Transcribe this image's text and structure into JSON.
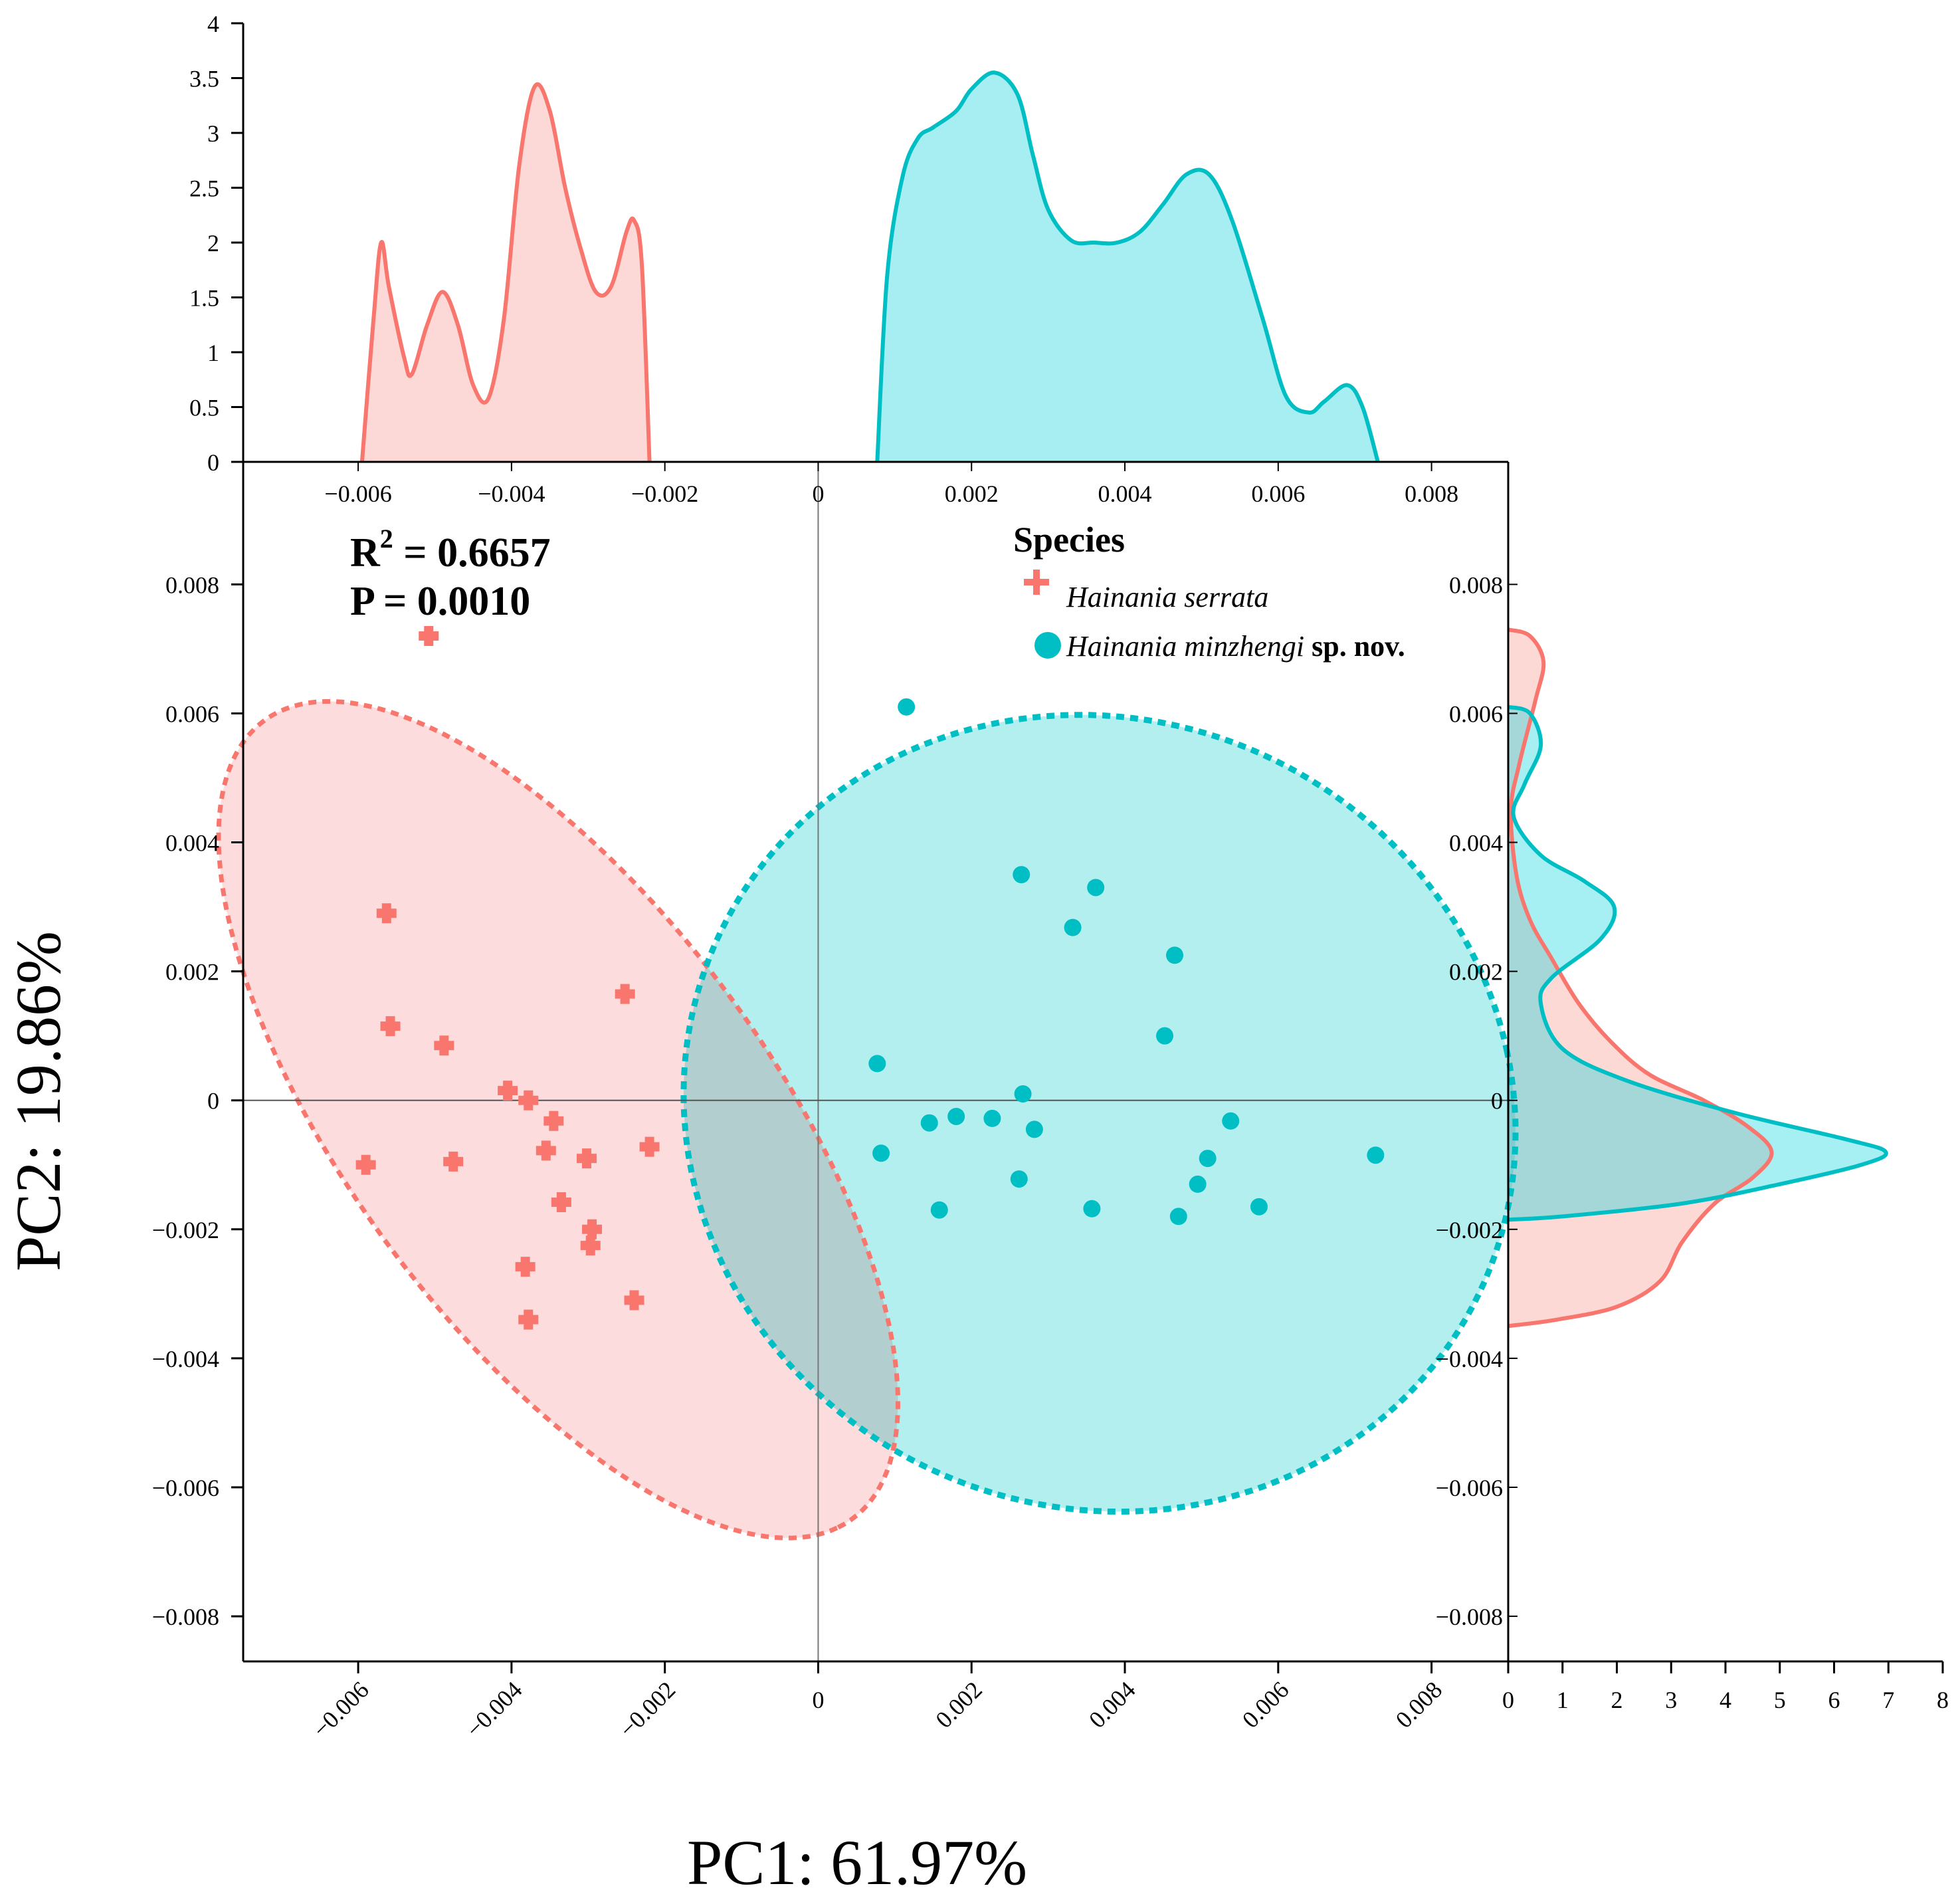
{
  "chart_data": {
    "type": "scatter",
    "title": "",
    "xlabel": "PC1: 61.97%",
    "ylabel": "PC2: 19.86%",
    "xlim": [
      -0.0075,
      0.009
    ],
    "ylim": [
      -0.0087,
      0.0099
    ],
    "x_ticks": [
      "−0.006",
      "−0.004",
      "−0.002",
      "0",
      "0.002",
      "0.004",
      "0.006",
      "0.008"
    ],
    "y_ticks": [
      "−0.008",
      "−0.006",
      "−0.004",
      "−0.002",
      "0",
      "0.002",
      "0.004",
      "0.006",
      "0.008"
    ],
    "top_ticks": [
      "−0.006",
      "−0.004",
      "−0.002",
      "0",
      "0.002",
      "0.004",
      "0.006",
      "0.008"
    ],
    "right_ticks": [
      "−0.008",
      "−0.006",
      "−0.004",
      "−0.002",
      "0",
      "0.002",
      "0.004",
      "0.006",
      "0.008"
    ],
    "annotation": {
      "r2_prefix": "R",
      "r2_sup": "2",
      "r2_value": " = 0.6657",
      "p_text": "P = 0.0010"
    },
    "legend": {
      "title": "Species",
      "items": [
        {
          "name_italic": "Hainania serrata",
          "suffix": ""
        },
        {
          "name_italic": "Hainania minzhengi",
          "suffix": " sp. nov."
        }
      ]
    },
    "series": [
      {
        "name": "Hainania serrata",
        "color": "#f8766d",
        "fill": "#fcdcdc",
        "marker": "plus",
        "points": [
          [
            -0.00508,
            0.0072
          ],
          [
            -0.00563,
            0.0029
          ],
          [
            -0.00558,
            0.00115
          ],
          [
            -0.00488,
            0.00085
          ],
          [
            -0.00405,
            0.00015
          ],
          [
            -0.00378,
            0.0
          ],
          [
            -0.00345,
            -0.00032
          ],
          [
            -0.00355,
            -0.00078
          ],
          [
            -0.00302,
            -0.0009
          ],
          [
            -0.0059,
            -0.001
          ],
          [
            -0.00476,
            -0.00095
          ],
          [
            -0.00335,
            -0.00158
          ],
          [
            -0.00295,
            -0.002
          ],
          [
            -0.00297,
            -0.00225
          ],
          [
            -0.00382,
            -0.00258
          ],
          [
            -0.00378,
            -0.0034
          ],
          [
            -0.0024,
            -0.0031
          ],
          [
            -0.0022,
            -0.00072
          ],
          [
            -0.00252,
            0.00165
          ]
        ],
        "ellipse": {
          "cx": -0.00339,
          "cy": -0.0003,
          "rx": 0.0073,
          "ry": 0.0029,
          "angle_deg": -60
        }
      },
      {
        "name": "Hainania minzhengi sp. nov.",
        "color": "#00bfc4",
        "fill": "#b2eef0",
        "marker": "circle",
        "points": [
          [
            0.00115,
            0.0061
          ],
          [
            0.00265,
            0.0035
          ],
          [
            0.00362,
            0.0033
          ],
          [
            0.00332,
            0.00268
          ],
          [
            0.00465,
            0.00225
          ],
          [
            0.00452,
            0.001
          ],
          [
            0.00077,
            0.00057
          ],
          [
            0.00267,
            0.0001
          ],
          [
            0.00082,
            -0.00082
          ],
          [
            0.00145,
            -0.00035
          ],
          [
            0.0018,
            -0.00025
          ],
          [
            0.00227,
            -0.00028
          ],
          [
            0.00282,
            -0.00045
          ],
          [
            0.00158,
            -0.0017
          ],
          [
            0.00262,
            -0.00122
          ],
          [
            0.00357,
            -0.00168
          ],
          [
            0.0047,
            -0.0018
          ],
          [
            0.00495,
            -0.0013
          ],
          [
            0.00508,
            -0.0009
          ],
          [
            0.00538,
            -0.00032
          ],
          [
            0.00575,
            -0.00165
          ],
          [
            0.00727,
            -0.00085
          ]
        ],
        "ellipse": {
          "cx": 0.00367,
          "cy": -0.0002,
          "rx": 0.0054,
          "ry": 0.0062,
          "angle_deg": 10
        }
      }
    ],
    "top_density": {
      "y_range": [
        0,
        4
      ],
      "y_ticks": [
        "0",
        "0.5",
        "1",
        "1.5",
        "2",
        "2.5",
        "3",
        "3.5",
        "4"
      ],
      "series": [
        {
          "name": "Hainania serrata",
          "points": [
            [
              -0.00595,
              0
            ],
            [
              -0.0058,
              1.3
            ],
            [
              -0.0057,
              2.0
            ],
            [
              -0.0056,
              1.6
            ],
            [
              -0.0054,
              0.95
            ],
            [
              -0.0053,
              0.8
            ],
            [
              -0.0051,
              1.25
            ],
            [
              -0.0049,
              1.55
            ],
            [
              -0.0047,
              1.25
            ],
            [
              -0.0045,
              0.7
            ],
            [
              -0.0043,
              0.58
            ],
            [
              -0.0041,
              1.3
            ],
            [
              -0.0039,
              2.7
            ],
            [
              -0.0037,
              3.42
            ],
            [
              -0.0035,
              3.2
            ],
            [
              -0.0033,
              2.5
            ],
            [
              -0.0031,
              1.95
            ],
            [
              -0.0029,
              1.55
            ],
            [
              -0.0027,
              1.6
            ],
            [
              -0.0025,
              2.1
            ],
            [
              -0.0024,
              2.2
            ],
            [
              -0.0023,
              1.8
            ],
            [
              -0.0022,
              0
            ]
          ]
        },
        {
          "name": "Hainania minzhengi sp. nov.",
          "points": [
            [
              0.00077,
              0
            ],
            [
              0.0009,
              1.7
            ],
            [
              0.0011,
              2.6
            ],
            [
              0.0013,
              2.95
            ],
            [
              0.0015,
              3.05
            ],
            [
              0.0018,
              3.2
            ],
            [
              0.002,
              3.4
            ],
            [
              0.0023,
              3.55
            ],
            [
              0.0026,
              3.35
            ],
            [
              0.0028,
              2.8
            ],
            [
              0.003,
              2.3
            ],
            [
              0.0033,
              2.02
            ],
            [
              0.0036,
              2.0
            ],
            [
              0.0039,
              2.0
            ],
            [
              0.0042,
              2.1
            ],
            [
              0.0045,
              2.35
            ],
            [
              0.0048,
              2.62
            ],
            [
              0.0051,
              2.62
            ],
            [
              0.0054,
              2.2
            ],
            [
              0.0058,
              1.3
            ],
            [
              0.0061,
              0.6
            ],
            [
              0.0064,
              0.45
            ],
            [
              0.0066,
              0.55
            ],
            [
              0.0069,
              0.7
            ],
            [
              0.0071,
              0.5
            ],
            [
              0.0073,
              0
            ]
          ]
        }
      ]
    },
    "right_density": {
      "x_range": [
        0,
        8
      ],
      "x_ticks": [
        "0",
        "1",
        "2",
        "3",
        "4",
        "5",
        "6",
        "7",
        "8"
      ],
      "series": [
        {
          "name": "Hainania serrata",
          "points": [
            [
              0,
              0.0073
            ],
            [
              0.4,
              0.0072
            ],
            [
              0.65,
              0.0068
            ],
            [
              0.5,
              0.0062
            ],
            [
              0.2,
              0.0052
            ],
            [
              0.05,
              0.0045
            ],
            [
              0.15,
              0.0035
            ],
            [
              0.4,
              0.0028
            ],
            [
              0.8,
              0.0022
            ],
            [
              1.3,
              0.0015
            ],
            [
              1.9,
              0.0009
            ],
            [
              2.6,
              0.0004
            ],
            [
              3.6,
              0.0
            ],
            [
              4.4,
              -0.0004
            ],
            [
              4.85,
              -0.0008
            ],
            [
              4.5,
              -0.0012
            ],
            [
              3.8,
              -0.0016
            ],
            [
              3.2,
              -0.0022
            ],
            [
              2.8,
              -0.0028
            ],
            [
              2.0,
              -0.0032
            ],
            [
              0.9,
              -0.0034
            ],
            [
              0,
              -0.0035
            ]
          ]
        },
        {
          "name": "Hainania minzhengi sp. nov.",
          "points": [
            [
              0,
              0.0061
            ],
            [
              0.4,
              0.006
            ],
            [
              0.6,
              0.0055
            ],
            [
              0.3,
              0.0049
            ],
            [
              0.1,
              0.0044
            ],
            [
              0.6,
              0.0038
            ],
            [
              1.4,
              0.0034
            ],
            [
              1.95,
              0.003
            ],
            [
              1.7,
              0.0025
            ],
            [
              0.8,
              0.0019
            ],
            [
              0.6,
              0.0015
            ],
            [
              1.0,
              0.0008
            ],
            [
              2.2,
              0.0003
            ],
            [
              4.2,
              -0.0002
            ],
            [
              6.2,
              -0.0006
            ],
            [
              6.95,
              -0.0008
            ],
            [
              6.5,
              -0.001
            ],
            [
              5.0,
              -0.0013
            ],
            [
              3.2,
              -0.0016
            ],
            [
              1.0,
              -0.0018
            ],
            [
              0,
              -0.00185
            ]
          ]
        }
      ]
    }
  }
}
